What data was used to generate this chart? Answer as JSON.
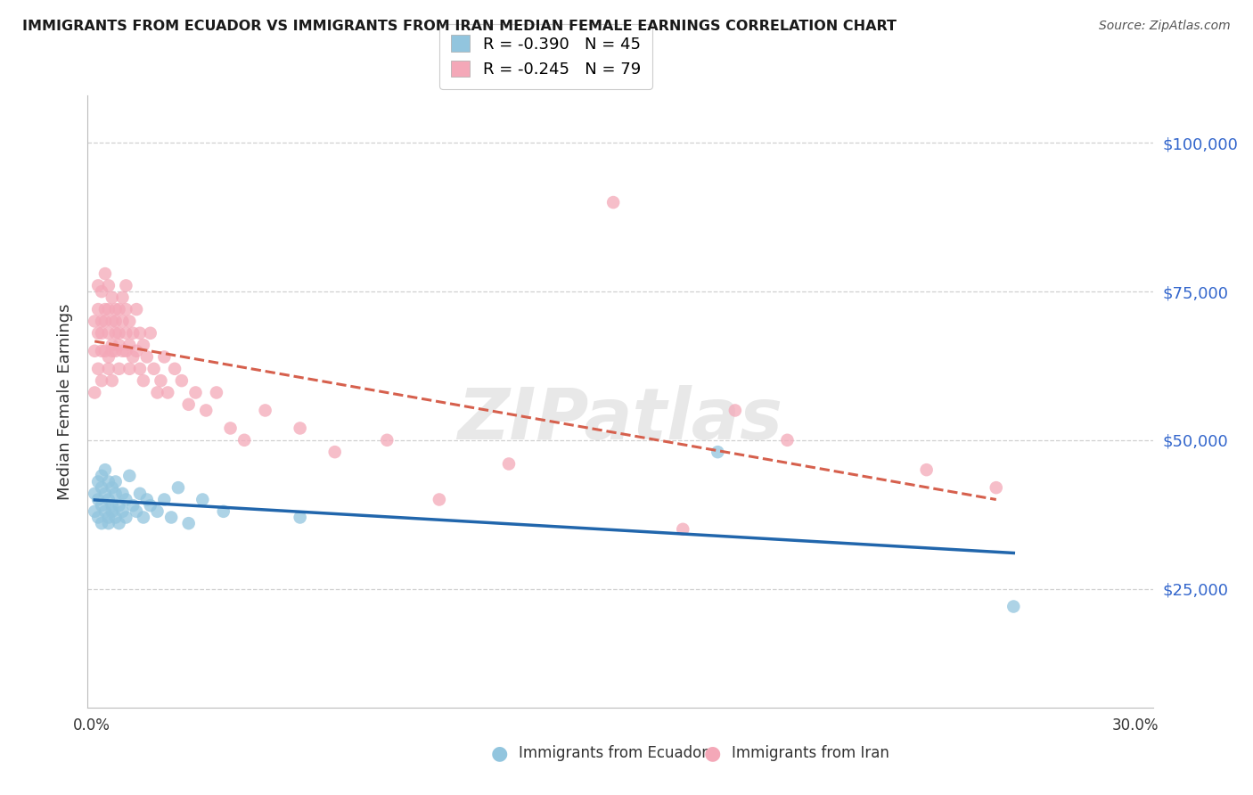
{
  "title": "IMMIGRANTS FROM ECUADOR VS IMMIGRANTS FROM IRAN MEDIAN FEMALE EARNINGS CORRELATION CHART",
  "source": "Source: ZipAtlas.com",
  "ylabel": "Median Female Earnings",
  "ytick_labels": [
    "$25,000",
    "$50,000",
    "$75,000",
    "$100,000"
  ],
  "ytick_values": [
    25000,
    50000,
    75000,
    100000
  ],
  "ymin": 5000,
  "ymax": 108000,
  "xmin": -0.001,
  "xmax": 0.305,
  "legend_ecuador": "R = -0.390   N = 45",
  "legend_iran": "R = -0.245   N = 79",
  "color_ecuador": "#92c5de",
  "color_iran": "#f4a8b8",
  "trendline_ecuador_color": "#2166ac",
  "trendline_iran_color": "#d6604d",
  "watermark": "ZIPatlas",
  "ecuador_x": [
    0.001,
    0.001,
    0.002,
    0.002,
    0.002,
    0.003,
    0.003,
    0.003,
    0.003,
    0.004,
    0.004,
    0.004,
    0.005,
    0.005,
    0.005,
    0.005,
    0.006,
    0.006,
    0.006,
    0.007,
    0.007,
    0.007,
    0.008,
    0.008,
    0.009,
    0.009,
    0.01,
    0.01,
    0.011,
    0.012,
    0.013,
    0.014,
    0.015,
    0.016,
    0.017,
    0.019,
    0.021,
    0.023,
    0.025,
    0.028,
    0.032,
    0.038,
    0.06,
    0.18,
    0.265
  ],
  "ecuador_y": [
    38000,
    41000,
    37000,
    40000,
    43000,
    39000,
    42000,
    36000,
    44000,
    38000,
    41000,
    45000,
    37000,
    40000,
    43000,
    36000,
    39000,
    42000,
    38000,
    41000,
    37000,
    43000,
    39000,
    36000,
    41000,
    38000,
    40000,
    37000,
    44000,
    39000,
    38000,
    41000,
    37000,
    40000,
    39000,
    38000,
    40000,
    37000,
    42000,
    36000,
    40000,
    38000,
    37000,
    48000,
    22000
  ],
  "iran_x": [
    0.001,
    0.001,
    0.001,
    0.002,
    0.002,
    0.002,
    0.002,
    0.003,
    0.003,
    0.003,
    0.003,
    0.003,
    0.004,
    0.004,
    0.004,
    0.004,
    0.005,
    0.005,
    0.005,
    0.005,
    0.005,
    0.006,
    0.006,
    0.006,
    0.006,
    0.006,
    0.007,
    0.007,
    0.007,
    0.007,
    0.008,
    0.008,
    0.008,
    0.008,
    0.009,
    0.009,
    0.009,
    0.01,
    0.01,
    0.01,
    0.01,
    0.011,
    0.011,
    0.011,
    0.012,
    0.012,
    0.013,
    0.013,
    0.014,
    0.014,
    0.015,
    0.015,
    0.016,
    0.017,
    0.018,
    0.019,
    0.02,
    0.021,
    0.022,
    0.024,
    0.026,
    0.028,
    0.03,
    0.033,
    0.036,
    0.04,
    0.044,
    0.05,
    0.06,
    0.07,
    0.085,
    0.1,
    0.12,
    0.15,
    0.17,
    0.185,
    0.2,
    0.24,
    0.26
  ],
  "iran_y": [
    58000,
    65000,
    70000,
    62000,
    68000,
    72000,
    76000,
    60000,
    65000,
    70000,
    75000,
    68000,
    72000,
    65000,
    78000,
    70000,
    64000,
    68000,
    72000,
    76000,
    62000,
    66000,
    70000,
    65000,
    74000,
    60000,
    68000,
    72000,
    65000,
    70000,
    66000,
    72000,
    68000,
    62000,
    65000,
    70000,
    74000,
    68000,
    72000,
    65000,
    76000,
    62000,
    66000,
    70000,
    64000,
    68000,
    72000,
    65000,
    68000,
    62000,
    66000,
    60000,
    64000,
    68000,
    62000,
    58000,
    60000,
    64000,
    58000,
    62000,
    60000,
    56000,
    58000,
    55000,
    58000,
    52000,
    50000,
    55000,
    52000,
    48000,
    50000,
    40000,
    46000,
    90000,
    35000,
    55000,
    50000,
    45000,
    42000
  ]
}
